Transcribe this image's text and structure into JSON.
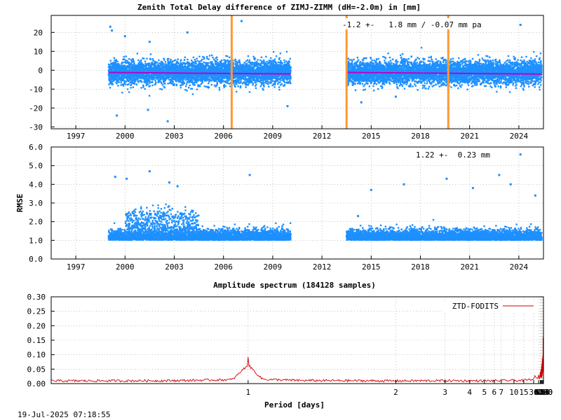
{
  "footer": {
    "timestamp": "19-Jul-2025 07:18:55"
  },
  "chart_data": [
    {
      "type": "scatter",
      "title": "Zenith Total Delay difference of ZIMJ-ZIMM (dH=-2.0m) in [mm]",
      "annotation": "-1.2 +-   1.8 mm / -0.07 mm pa",
      "ylabel": "",
      "xlim": [
        1995.5,
        2025.5
      ],
      "ylim": [
        -31,
        29
      ],
      "yticks": [
        20,
        10,
        0,
        -10,
        -20,
        -30
      ],
      "xticks": [
        1997,
        2000,
        2003,
        2006,
        2009,
        2012,
        2015,
        2018,
        2021,
        2024
      ],
      "grid": true,
      "point_color": "#1e90ff",
      "mean_line_color": "#c000c0",
      "event_line_color": "#ff9933",
      "event_lines_year": [
        2006.5,
        2013.5,
        2019.7
      ],
      "data_ranges_year": [
        [
          1999.0,
          2010.1
        ],
        [
          2013.5,
          2025.4
        ]
      ],
      "spread": {
        "mean": -1.2,
        "sigma": 1.8,
        "trend_per_year": -0.07
      },
      "outliers": [
        {
          "x": 1999.1,
          "y": 23
        },
        {
          "x": 1999.2,
          "y": 21
        },
        {
          "x": 2000.0,
          "y": 18
        },
        {
          "x": 2001.5,
          "y": 15
        },
        {
          "x": 2003.8,
          "y": 20
        },
        {
          "x": 2007.1,
          "y": 26
        },
        {
          "x": 2001.4,
          "y": -21
        },
        {
          "x": 2002.6,
          "y": -27
        },
        {
          "x": 1999.5,
          "y": -24
        },
        {
          "x": 2009.9,
          "y": -19
        },
        {
          "x": 2016.5,
          "y": -14
        },
        {
          "x": 2024.1,
          "y": 24
        },
        {
          "x": 2014.4,
          "y": -17
        }
      ]
    },
    {
      "type": "scatter",
      "title": "",
      "annotation": "1.22 +-  0.23 mm",
      "ylabel": "RMSE",
      "xlim": [
        1995.5,
        2025.5
      ],
      "ylim": [
        0,
        6
      ],
      "yticks": [
        0.0,
        1.0,
        2.0,
        3.0,
        4.0,
        5.0,
        6.0
      ],
      "ytick_labels": [
        "0.0",
        "1.0",
        "2.0",
        "3.0",
        "4.0",
        "5.0",
        "6.0"
      ],
      "xticks": [
        1997,
        2000,
        2003,
        2006,
        2009,
        2012,
        2015,
        2018,
        2021,
        2024
      ],
      "grid": true,
      "point_color": "#1e90ff",
      "data_ranges_year": [
        [
          1999.0,
          2010.1
        ],
        [
          2013.5,
          2025.4
        ]
      ],
      "spread": {
        "mean": 1.22,
        "sigma": 0.23
      },
      "outliers": [
        {
          "x": 1999.4,
          "y": 4.4
        },
        {
          "x": 2000.1,
          "y": 4.3
        },
        {
          "x": 2001.5,
          "y": 4.7
        },
        {
          "x": 2002.7,
          "y": 4.1
        },
        {
          "x": 2003.2,
          "y": 3.9
        },
        {
          "x": 2007.6,
          "y": 4.5
        },
        {
          "x": 2014.2,
          "y": 2.3
        },
        {
          "x": 2015.0,
          "y": 3.7
        },
        {
          "x": 2017.0,
          "y": 4.0
        },
        {
          "x": 2019.6,
          "y": 4.3
        },
        {
          "x": 2021.2,
          "y": 3.8
        },
        {
          "x": 2022.8,
          "y": 4.5
        },
        {
          "x": 2023.5,
          "y": 4.0
        },
        {
          "x": 2024.1,
          "y": 5.6
        },
        {
          "x": 2025.0,
          "y": 3.4
        }
      ]
    },
    {
      "type": "line",
      "title": "Amplitude spectrum (184128 samples)",
      "xlabel": "Period [days]",
      "ylabel": "",
      "x_scale": "reciprocal",
      "xlim": [
        0.6,
        8760
      ],
      "ylim": [
        0,
        0.3
      ],
      "yticks": [
        0.0,
        0.05,
        0.1,
        0.15,
        0.2,
        0.25,
        0.3
      ],
      "ytick_labels": [
        "0.00",
        "0.05",
        "0.10",
        "0.15",
        "0.20",
        "0.25",
        "0.30"
      ],
      "xticks": [
        1,
        2,
        3,
        4,
        5,
        6,
        7,
        10,
        15,
        30,
        61,
        91,
        122,
        183,
        365,
        730,
        2190,
        4380,
        8760
      ],
      "grid": true,
      "legend": {
        "position": "top-right",
        "label": "ZTD-FODITS"
      },
      "series": [
        {
          "name": "ZTD-FODITS",
          "color": "#d40000",
          "x": [
            0.6,
            0.8,
            0.95,
            1.0,
            1.05,
            1.2,
            1.5,
            2,
            3,
            5,
            7,
            10,
            15,
            20,
            30,
            40,
            50,
            61,
            70,
            80,
            91,
            100,
            110,
            122,
            130,
            140,
            150,
            160,
            170,
            183,
            200,
            220,
            240,
            270,
            300,
            330,
            365,
            400,
            450,
            500,
            550,
            600,
            650,
            700,
            730,
            800,
            900,
            1000,
            1100,
            1300,
            1500,
            1700,
            1900,
            2190,
            2500,
            3000,
            3500,
            4380,
            5500,
            8760
          ],
          "y": [
            0.012,
            0.013,
            0.018,
            0.092,
            0.02,
            0.014,
            0.013,
            0.012,
            0.013,
            0.012,
            0.013,
            0.014,
            0.014,
            0.016,
            0.017,
            0.02,
            0.018,
            0.03,
            0.015,
            0.025,
            0.04,
            0.02,
            0.045,
            0.05,
            0.02,
            0.04,
            0.06,
            0.025,
            0.065,
            0.07,
            0.02,
            0.06,
            0.085,
            0.03,
            0.07,
            0.08,
            0.095,
            0.04,
            0.065,
            0.06,
            0.07,
            0.095,
            0.05,
            0.12,
            0.16,
            0.09,
            0.1,
            0.14,
            0.06,
            0.12,
            0.13,
            0.05,
            0.05,
            0.05,
            0.05,
            0.09,
            0.25,
            0.25,
            0.22,
            0.17
          ]
        }
      ]
    }
  ]
}
